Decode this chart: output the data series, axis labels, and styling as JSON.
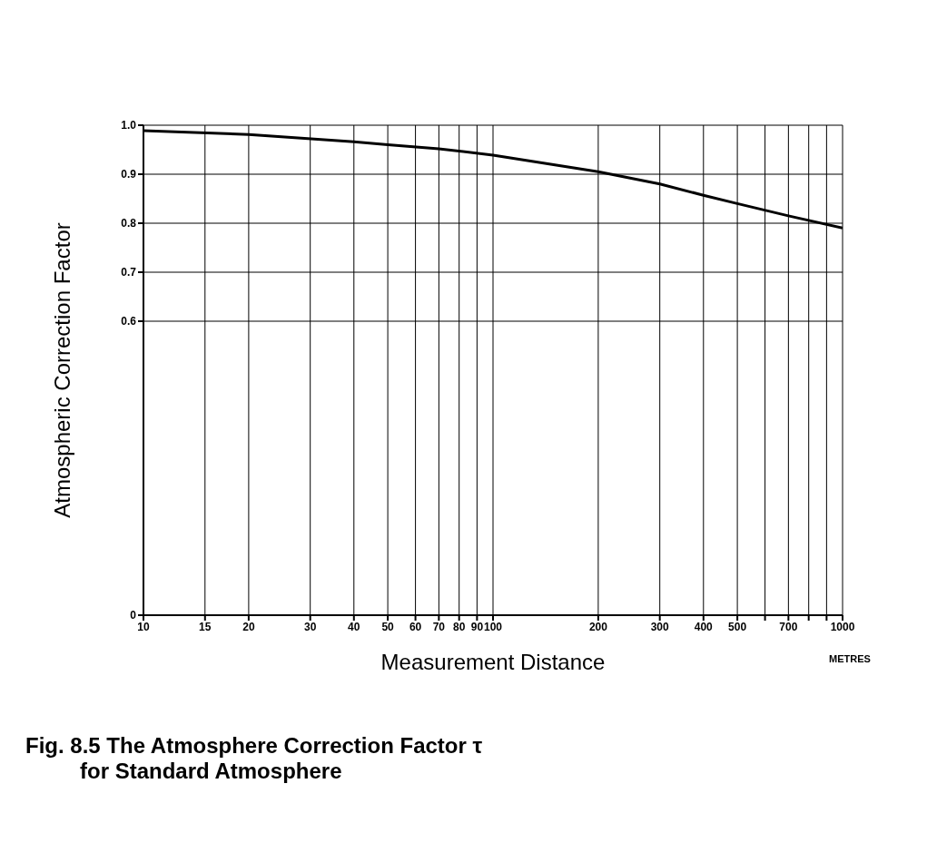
{
  "chart_data": {
    "type": "line",
    "title": "Fig. 8.5 The Atmosphere Correction Factor τ\nfor Standard Atmosphere",
    "xlabel": "Measurement Distance",
    "ylabel": "Atmospheric Correction Factor",
    "annotations": [
      "METRES"
    ],
    "log": "x",
    "x": [
      10,
      20,
      40,
      50,
      70,
      100,
      200,
      300,
      400,
      500,
      700,
      1000
    ],
    "series": [
      {
        "color": "#000000",
        "values": [
          0.989,
          0.981,
          0.966,
          0.96,
          0.952,
          0.939,
          0.905,
          0.88,
          0.857,
          0.84,
          0.815,
          0.79
        ]
      }
    ],
    "xlim": [
      10,
      1000
    ],
    "xticks": [
      10,
      15,
      20,
      30,
      40,
      50,
      60,
      70,
      80,
      90,
      100,
      200,
      300,
      400,
      500,
      {
        "value": 600,
        "label": null
      },
      700,
      {
        "value": 800,
        "label": null
      },
      {
        "value": 900,
        "label": null
      },
      1000
    ],
    "ylim": [
      0,
      1
    ],
    "yticks": [
      0,
      0.6,
      0.7,
      0.8,
      0.9,
      {
        "value": 1,
        "label": "1.0"
      }
    ],
    "grid": true,
    "marker": "none",
    "line_style": "solid",
    "legend": false
  }
}
